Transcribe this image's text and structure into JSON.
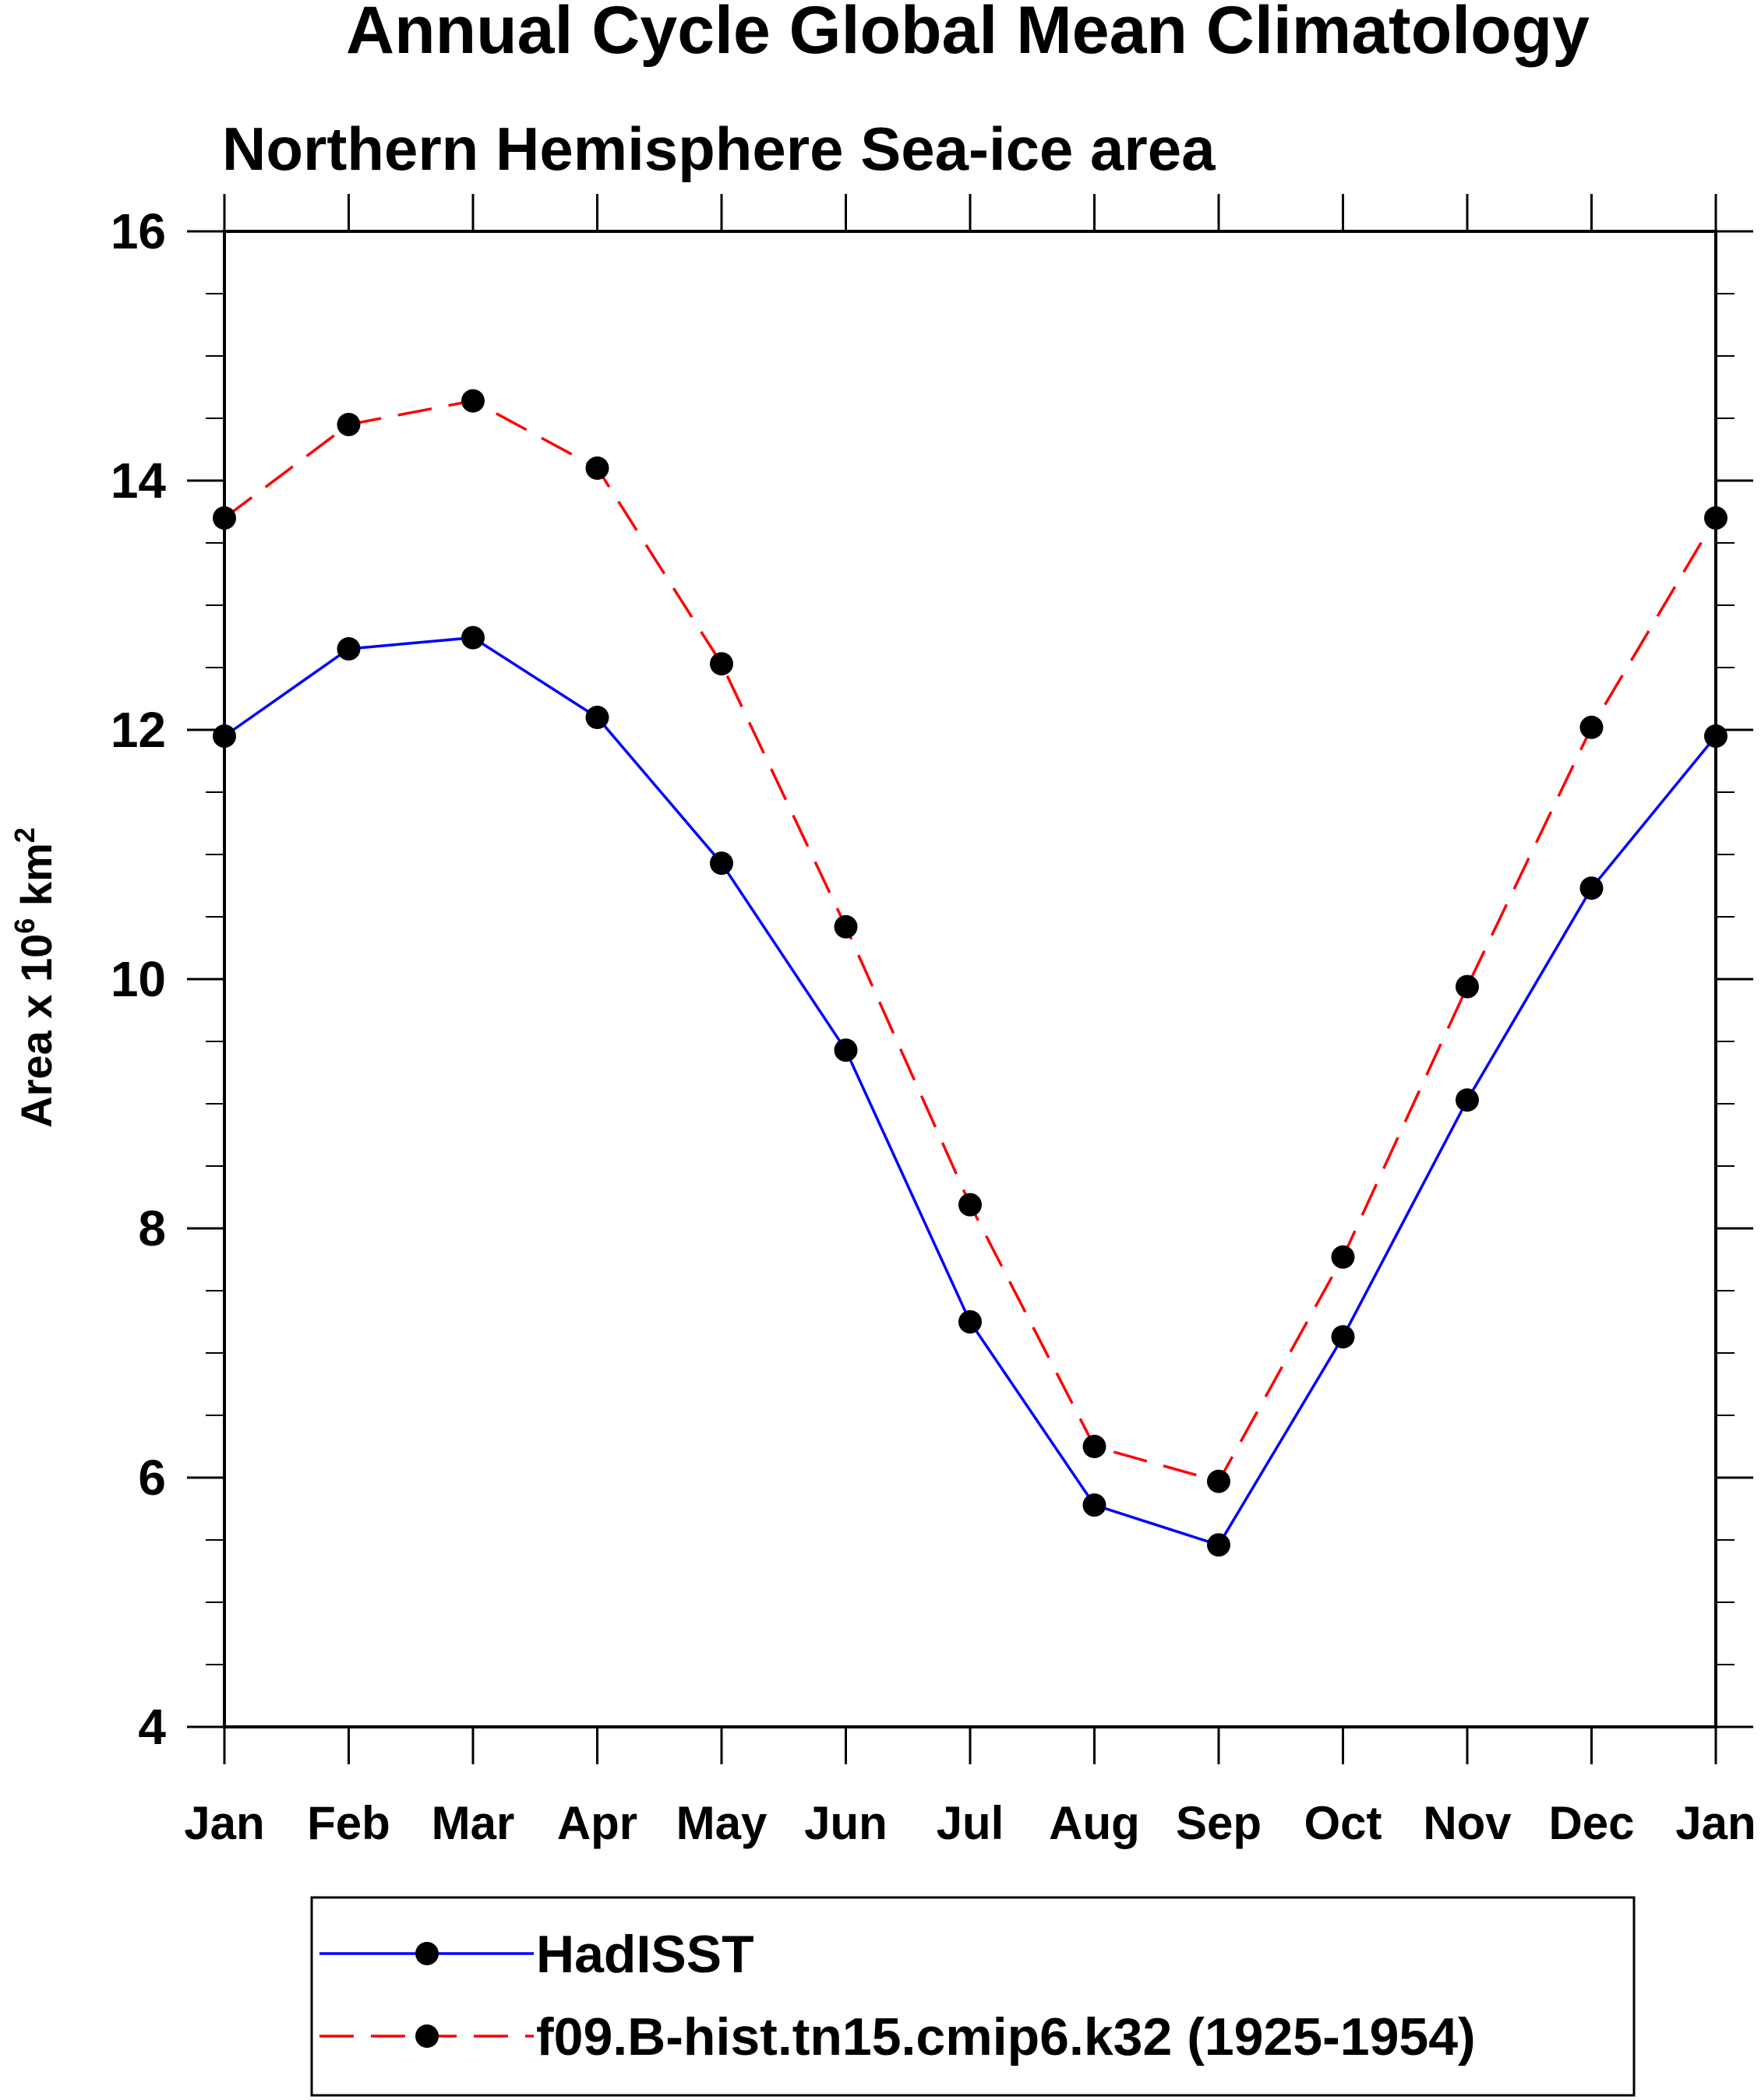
{
  "chart_data": {
    "type": "line",
    "title": "Annual Cycle Global Mean Climatology",
    "subtitle": "Northern Hemisphere Sea-ice area",
    "ylabel_prefix": "Area x 10",
    "ylabel_exp1": "6",
    "ylabel_unit": " km",
    "ylabel_exp2": "2",
    "categories": [
      "Jan",
      "Feb",
      "Mar",
      "Apr",
      "May",
      "Jun",
      "Jul",
      "Aug",
      "Sep",
      "Oct",
      "Nov",
      "Dec",
      "Jan"
    ],
    "yticks": [
      4,
      6,
      8,
      10,
      12,
      14,
      16
    ],
    "ylim": [
      4,
      16
    ],
    "grid": false,
    "legend_position": "bottom",
    "series": [
      {
        "name": "HadISST",
        "color": "#0000ff",
        "style": "solid",
        "values": [
          11.95,
          12.65,
          12.74,
          12.1,
          10.93,
          9.43,
          7.25,
          5.78,
          5.46,
          7.13,
          9.03,
          10.73,
          11.95
        ]
      },
      {
        "name": "f09.B-hist.tn15.cmip6.k32 (1925-1954)",
        "color": "#ff0000",
        "style": "dashed",
        "values": [
          13.7,
          14.45,
          14.64,
          14.1,
          12.53,
          10.42,
          8.19,
          6.25,
          5.97,
          7.77,
          9.94,
          12.02,
          13.7
        ]
      }
    ]
  }
}
